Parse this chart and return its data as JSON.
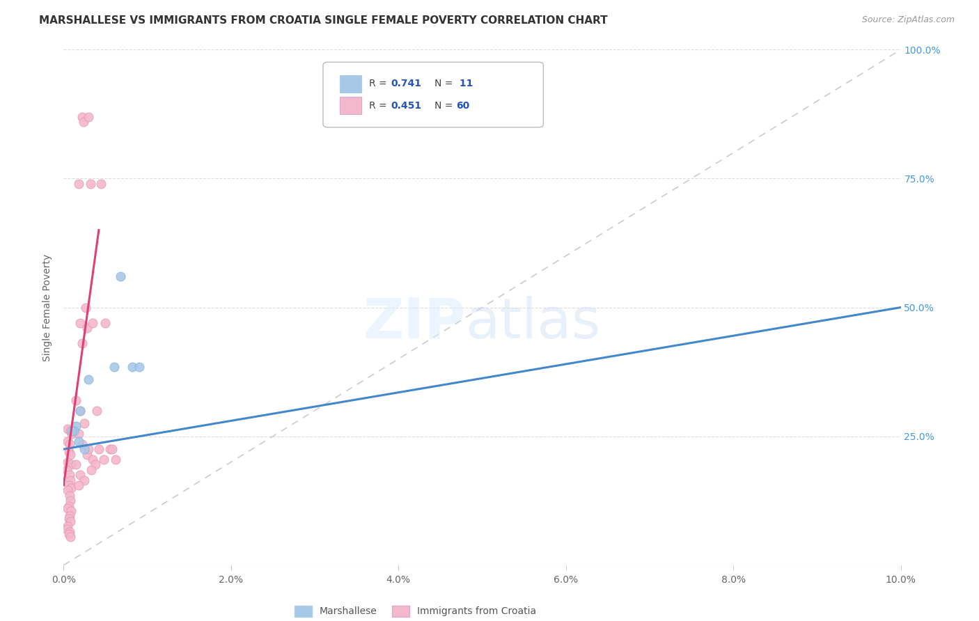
{
  "title": "MARSHALLESE VS IMMIGRANTS FROM CROATIA SINGLE FEMALE POVERTY CORRELATION CHART",
  "source": "Source: ZipAtlas.com",
  "ylabel": "Single Female Poverty",
  "legend_label_blue": "Marshallese",
  "legend_label_pink": "Immigrants from Croatia",
  "blue_color": "#a8c8e8",
  "pink_color": "#f4b8cc",
  "blue_scatter": [
    [
      0.0015,
      0.27
    ],
    [
      0.0018,
      0.24
    ],
    [
      0.002,
      0.3
    ],
    [
      0.0012,
      0.26
    ],
    [
      0.001,
      0.26
    ],
    [
      0.003,
      0.36
    ],
    [
      0.006,
      0.385
    ],
    [
      0.0068,
      0.56
    ],
    [
      0.0082,
      0.385
    ],
    [
      0.009,
      0.385
    ],
    [
      0.0025,
      0.225
    ]
  ],
  "pink_scatter": [
    [
      0.0005,
      0.265
    ],
    [
      0.0008,
      0.26
    ],
    [
      0.001,
      0.255
    ],
    [
      0.0005,
      0.24
    ],
    [
      0.0007,
      0.235
    ],
    [
      0.0006,
      0.22
    ],
    [
      0.0008,
      0.215
    ],
    [
      0.0005,
      0.2
    ],
    [
      0.0009,
      0.195
    ],
    [
      0.0004,
      0.185
    ],
    [
      0.0007,
      0.175
    ],
    [
      0.0008,
      0.165
    ],
    [
      0.0006,
      0.155
    ],
    [
      0.0009,
      0.15
    ],
    [
      0.0005,
      0.145
    ],
    [
      0.0007,
      0.135
    ],
    [
      0.0008,
      0.125
    ],
    [
      0.0006,
      0.115
    ],
    [
      0.0005,
      0.11
    ],
    [
      0.0009,
      0.105
    ],
    [
      0.0007,
      0.095
    ],
    [
      0.0006,
      0.09
    ],
    [
      0.0008,
      0.085
    ],
    [
      0.0005,
      0.075
    ],
    [
      0.0004,
      0.07
    ],
    [
      0.0007,
      0.065
    ],
    [
      0.0006,
      0.06
    ],
    [
      0.0008,
      0.055
    ],
    [
      0.0022,
      0.87
    ],
    [
      0.0024,
      0.86
    ],
    [
      0.0026,
      0.5
    ],
    [
      0.002,
      0.47
    ],
    [
      0.0018,
      0.74
    ],
    [
      0.0028,
      0.46
    ],
    [
      0.0022,
      0.43
    ],
    [
      0.0015,
      0.32
    ],
    [
      0.002,
      0.3
    ],
    [
      0.0025,
      0.275
    ],
    [
      0.0018,
      0.255
    ],
    [
      0.0022,
      0.235
    ],
    [
      0.0028,
      0.215
    ],
    [
      0.0015,
      0.195
    ],
    [
      0.002,
      0.175
    ],
    [
      0.0025,
      0.165
    ],
    [
      0.0018,
      0.155
    ],
    [
      0.003,
      0.87
    ],
    [
      0.0032,
      0.74
    ],
    [
      0.0035,
      0.47
    ],
    [
      0.003,
      0.225
    ],
    [
      0.0035,
      0.205
    ],
    [
      0.0038,
      0.195
    ],
    [
      0.0033,
      0.185
    ],
    [
      0.004,
      0.3
    ],
    [
      0.0045,
      0.74
    ],
    [
      0.0042,
      0.225
    ],
    [
      0.0048,
      0.205
    ],
    [
      0.005,
      0.47
    ],
    [
      0.0055,
      0.225
    ],
    [
      0.0058,
      0.225
    ],
    [
      0.0062,
      0.205
    ]
  ],
  "xlim": [
    0.0,
    0.1
  ],
  "ylim": [
    0.0,
    1.0
  ],
  "blue_line_x": [
    0.0,
    0.1
  ],
  "blue_line_y": [
    0.225,
    0.5
  ],
  "pink_line_x": [
    0.0,
    0.0042
  ],
  "pink_line_y": [
    0.155,
    0.65
  ],
  "diag_line_x": [
    0.0,
    0.1
  ],
  "diag_line_y": [
    0.0,
    1.0
  ],
  "xticks": [
    0.0,
    0.02,
    0.04,
    0.06,
    0.08,
    0.1
  ],
  "yticks_right": [
    0.25,
    0.5,
    0.75,
    1.0
  ],
  "ytick_right_labels": [
    "25.0%",
    "50.0%",
    "75.0%",
    "100.0%"
  ],
  "right_label_50_note": "50.0%"
}
